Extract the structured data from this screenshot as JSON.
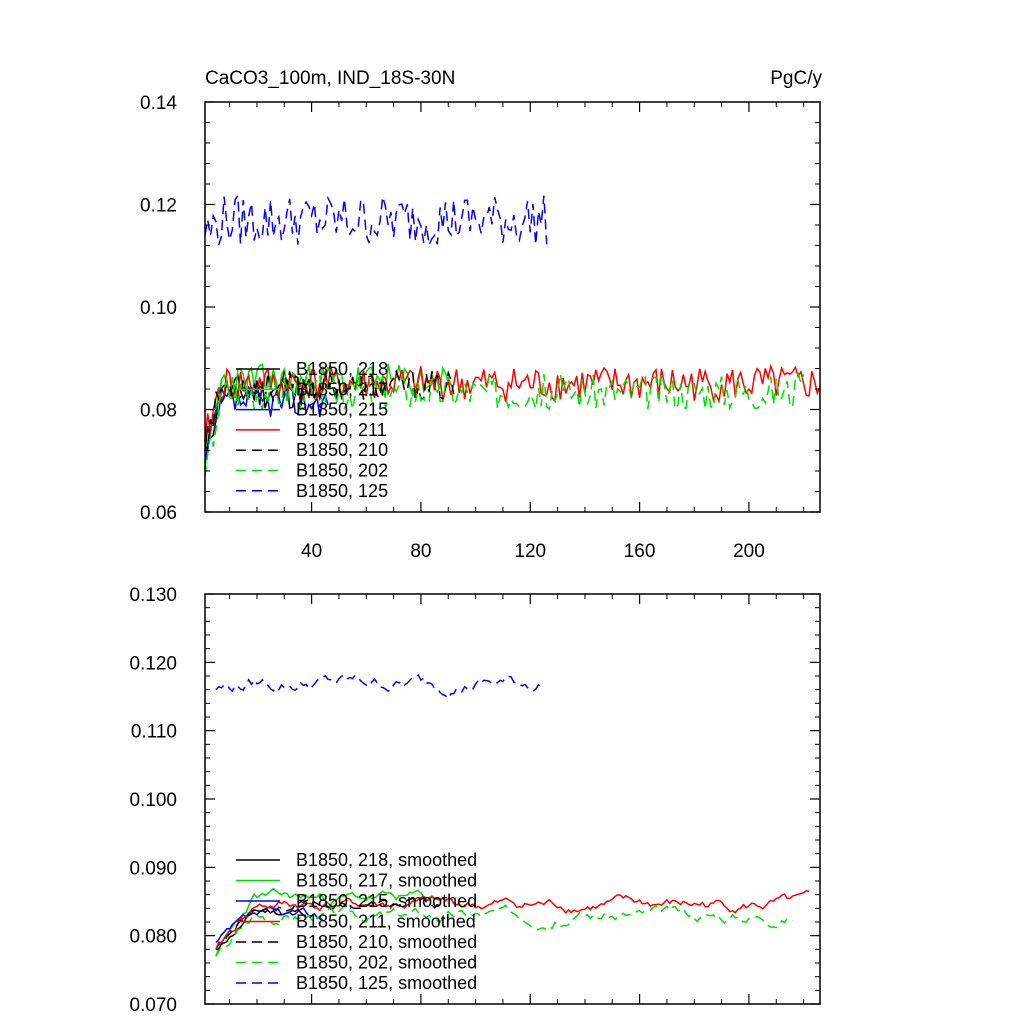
{
  "chart_data": [
    {
      "type": "line",
      "title": "CaCO3_100m, IND_18S-30N",
      "units": "PgC/y",
      "xlabel": "",
      "ylabel": "",
      "xlim": [
        1,
        226
      ],
      "ylim": [
        0.06,
        0.14
      ],
      "xticks": [
        40,
        80,
        120,
        160,
        200
      ],
      "xtick_labels": [
        "40",
        "80",
        "120",
        "160",
        "200"
      ],
      "yticks": [
        0.06,
        0.08,
        0.1,
        0.12,
        0.14
      ],
      "ytick_labels": [
        "0.06",
        "0.08",
        "0.10",
        "0.12",
        "0.14"
      ],
      "legend_position": "lower-left",
      "series": [
        {
          "name": "B1850, 218",
          "color": "#000000",
          "dash": "solid",
          "x_start": 1,
          "x_end": 40,
          "mean": 0.0835,
          "amplitude": 0.0035,
          "first": 0.072,
          "seed": 11
        },
        {
          "name": "B1850, 217",
          "color": "#00dd00",
          "dash": "solid",
          "x_start": 1,
          "x_end": 92,
          "mean": 0.0855,
          "amplitude": 0.0035,
          "first": 0.068,
          "seed": 23
        },
        {
          "name": "B1850, 215",
          "color": "#0000ff",
          "dash": "solid",
          "x_start": 1,
          "x_end": 46,
          "mean": 0.0815,
          "amplitude": 0.003,
          "first": 0.07,
          "seed": 37
        },
        {
          "name": "B1850, 211",
          "color": "#ff0000",
          "dash": "solid",
          "x_start": 1,
          "x_end": 226,
          "mean": 0.085,
          "amplitude": 0.0035,
          "first": 0.074,
          "seed": 41
        },
        {
          "name": "B1850, 210",
          "color": "#000000",
          "dash": "dashed",
          "x_start": 1,
          "x_end": 92,
          "mean": 0.0845,
          "amplitude": 0.003,
          "first": 0.073,
          "seed": 53
        },
        {
          "name": "B1850, 202",
          "color": "#00dd00",
          "dash": "dashed",
          "x_start": 1,
          "x_end": 220,
          "mean": 0.0835,
          "amplitude": 0.0035,
          "first": 0.067,
          "seed": 67
        },
        {
          "name": "B1850, 125",
          "color": "#0000ff",
          "dash": "dashed",
          "x_start": 1,
          "x_end": 126,
          "mean": 0.117,
          "amplitude": 0.005,
          "first": 0.114,
          "seed": 79
        }
      ]
    },
    {
      "type": "line",
      "title": "",
      "xlabel": "",
      "ylabel": "",
      "xlim": [
        1,
        226
      ],
      "ylim": [
        0.07,
        0.13
      ],
      "xticks": [
        40,
        80,
        120,
        160,
        200
      ],
      "xtick_labels": [],
      "yticks": [
        0.07,
        0.08,
        0.09,
        0.1,
        0.11,
        0.12,
        0.13
      ],
      "ytick_labels": [
        "0.070",
        "0.080",
        "0.090",
        "0.100",
        "0.110",
        "0.120",
        "0.130"
      ],
      "legend_position": "lower-left",
      "series": [
        {
          "name": "B1850, 218, smoothed",
          "color": "#000000",
          "dash": "solid",
          "x_start": 5,
          "x_end": 38,
          "mean": 0.0835,
          "amplitude": 0.001,
          "first": 0.078,
          "seed": 11
        },
        {
          "name": "B1850, 217, smoothed",
          "color": "#00dd00",
          "dash": "solid",
          "x_start": 5,
          "x_end": 88,
          "mean": 0.0855,
          "amplitude": 0.0012,
          "first": 0.077,
          "seed": 23
        },
        {
          "name": "B1850, 215, smoothed",
          "color": "#0000ff",
          "dash": "solid",
          "x_start": 5,
          "x_end": 44,
          "mean": 0.0825,
          "amplitude": 0.0012,
          "first": 0.079,
          "seed": 37
        },
        {
          "name": "B1850, 211, smoothed",
          "color": "#ff0000",
          "dash": "solid",
          "x_start": 5,
          "x_end": 222,
          "mean": 0.0845,
          "amplitude": 0.0013,
          "first": 0.078,
          "seed": 41
        },
        {
          "name": "B1850, 210, smoothed",
          "color": "#000000",
          "dash": "dashed",
          "x_start": 5,
          "x_end": 88,
          "mean": 0.0845,
          "amplitude": 0.001,
          "first": 0.078,
          "seed": 53
        },
        {
          "name": "B1850, 202, smoothed",
          "color": "#00dd00",
          "dash": "dashed",
          "x_start": 5,
          "x_end": 216,
          "mean": 0.083,
          "amplitude": 0.0013,
          "first": 0.077,
          "seed": 67
        },
        {
          "name": "B1850, 125, smoothed",
          "color": "#0000ff",
          "dash": "dashed",
          "x_start": 5,
          "x_end": 124,
          "mean": 0.117,
          "amplitude": 0.0016,
          "first": 0.116,
          "seed": 79
        }
      ]
    }
  ]
}
